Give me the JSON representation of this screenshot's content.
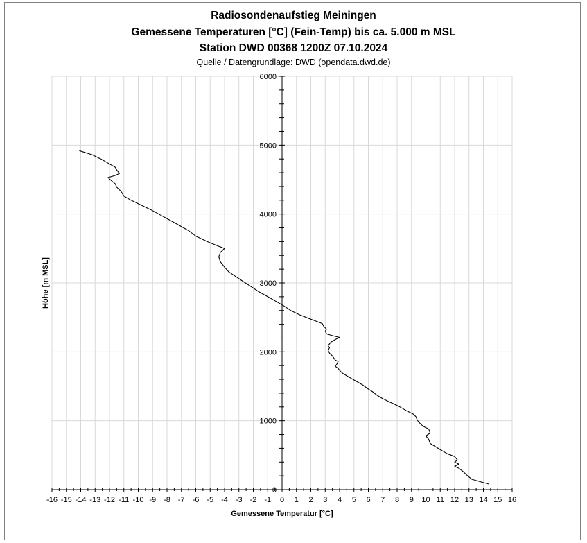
{
  "chart_data": {
    "type": "line",
    "title": "Radiosondenaufstieg Meiningen",
    "title_line2": "Gemessene Temperaturen [°C] (Fein-Temp) bis ca. 5.000 m MSL",
    "title_line3": "Station DWD 00368 1200Z 07.10.2024",
    "subtitle": "Quelle / Datengrundlage: DWD (opendata.dwd.de)",
    "xlabel": "Gemessene Temperatur [°C]",
    "ylabel": "Höhe [m MSL]",
    "xlim": [
      -16,
      16
    ],
    "ylim": [
      0,
      6000
    ],
    "x_ticks": [
      -16,
      -15,
      -14,
      -13,
      -12,
      -11,
      -10,
      -9,
      -8,
      -7,
      -6,
      -5,
      -4,
      -3,
      -2,
      -1,
      0,
      1,
      2,
      3,
      4,
      5,
      6,
      7,
      8,
      9,
      10,
      11,
      12,
      13,
      14,
      15,
      16
    ],
    "y_ticks": [
      0,
      1000,
      2000,
      3000,
      4000,
      5000,
      6000
    ],
    "grid": true,
    "line_color": "#000000",
    "series": [
      {
        "points": [
          [
            14.4,
            80
          ],
          [
            13.7,
            120
          ],
          [
            13.2,
            150
          ],
          [
            12.9,
            200
          ],
          [
            12.6,
            260
          ],
          [
            12.3,
            310
          ],
          [
            12.0,
            340
          ],
          [
            12.3,
            370
          ],
          [
            12.0,
            400
          ],
          [
            12.2,
            430
          ],
          [
            12.0,
            480
          ],
          [
            11.5,
            520
          ],
          [
            11.0,
            580
          ],
          [
            10.7,
            620
          ],
          [
            10.3,
            670
          ],
          [
            10.2,
            730
          ],
          [
            10.0,
            780
          ],
          [
            10.3,
            820
          ],
          [
            10.2,
            880
          ],
          [
            9.8,
            920
          ],
          [
            9.6,
            960
          ],
          [
            9.4,
            1010
          ],
          [
            9.3,
            1060
          ],
          [
            9.1,
            1100
          ],
          [
            8.7,
            1140
          ],
          [
            8.2,
            1200
          ],
          [
            7.8,
            1240
          ],
          [
            7.4,
            1280
          ],
          [
            7.0,
            1320
          ],
          [
            6.6,
            1370
          ],
          [
            6.3,
            1420
          ],
          [
            6.0,
            1460
          ],
          [
            5.6,
            1520
          ],
          [
            5.1,
            1580
          ],
          [
            4.6,
            1640
          ],
          [
            4.2,
            1690
          ],
          [
            4.0,
            1730
          ],
          [
            3.9,
            1760
          ],
          [
            3.7,
            1790
          ],
          [
            3.8,
            1820
          ],
          [
            3.9,
            1860
          ],
          [
            3.7,
            1880
          ],
          [
            3.5,
            1940
          ],
          [
            3.3,
            1980
          ],
          [
            3.2,
            2020
          ],
          [
            3.3,
            2060
          ],
          [
            3.2,
            2090
          ],
          [
            3.4,
            2140
          ],
          [
            3.7,
            2180
          ],
          [
            4.0,
            2210
          ],
          [
            3.6,
            2230
          ],
          [
            3.1,
            2260
          ],
          [
            3.0,
            2300
          ],
          [
            3.1,
            2330
          ],
          [
            2.9,
            2370
          ],
          [
            2.8,
            2410
          ],
          [
            2.3,
            2450
          ],
          [
            1.8,
            2490
          ],
          [
            1.2,
            2540
          ],
          [
            0.6,
            2600
          ],
          [
            0.1,
            2670
          ],
          [
            -0.4,
            2730
          ],
          [
            -0.9,
            2790
          ],
          [
            -1.6,
            2870
          ],
          [
            -2.1,
            2940
          ],
          [
            -2.7,
            3020
          ],
          [
            -3.2,
            3090
          ],
          [
            -3.7,
            3160
          ],
          [
            -4.0,
            3230
          ],
          [
            -4.3,
            3310
          ],
          [
            -4.4,
            3380
          ],
          [
            -4.3,
            3440
          ],
          [
            -4.0,
            3500
          ],
          [
            -4.5,
            3540
          ],
          [
            -5.2,
            3600
          ],
          [
            -6.0,
            3680
          ],
          [
            -6.5,
            3760
          ],
          [
            -7.1,
            3830
          ],
          [
            -7.7,
            3900
          ],
          [
            -8.4,
            3980
          ],
          [
            -9.1,
            4060
          ],
          [
            -9.8,
            4130
          ],
          [
            -10.5,
            4200
          ],
          [
            -11.0,
            4260
          ],
          [
            -11.2,
            4330
          ],
          [
            -11.5,
            4390
          ],
          [
            -11.6,
            4440
          ],
          [
            -11.9,
            4490
          ],
          [
            -12.1,
            4530
          ],
          [
            -11.6,
            4560
          ],
          [
            -11.3,
            4590
          ],
          [
            -11.5,
            4640
          ],
          [
            -11.6,
            4680
          ],
          [
            -12.1,
            4740
          ],
          [
            -12.6,
            4800
          ],
          [
            -13.2,
            4860
          ],
          [
            -14.1,
            4920
          ]
        ]
      }
    ]
  }
}
